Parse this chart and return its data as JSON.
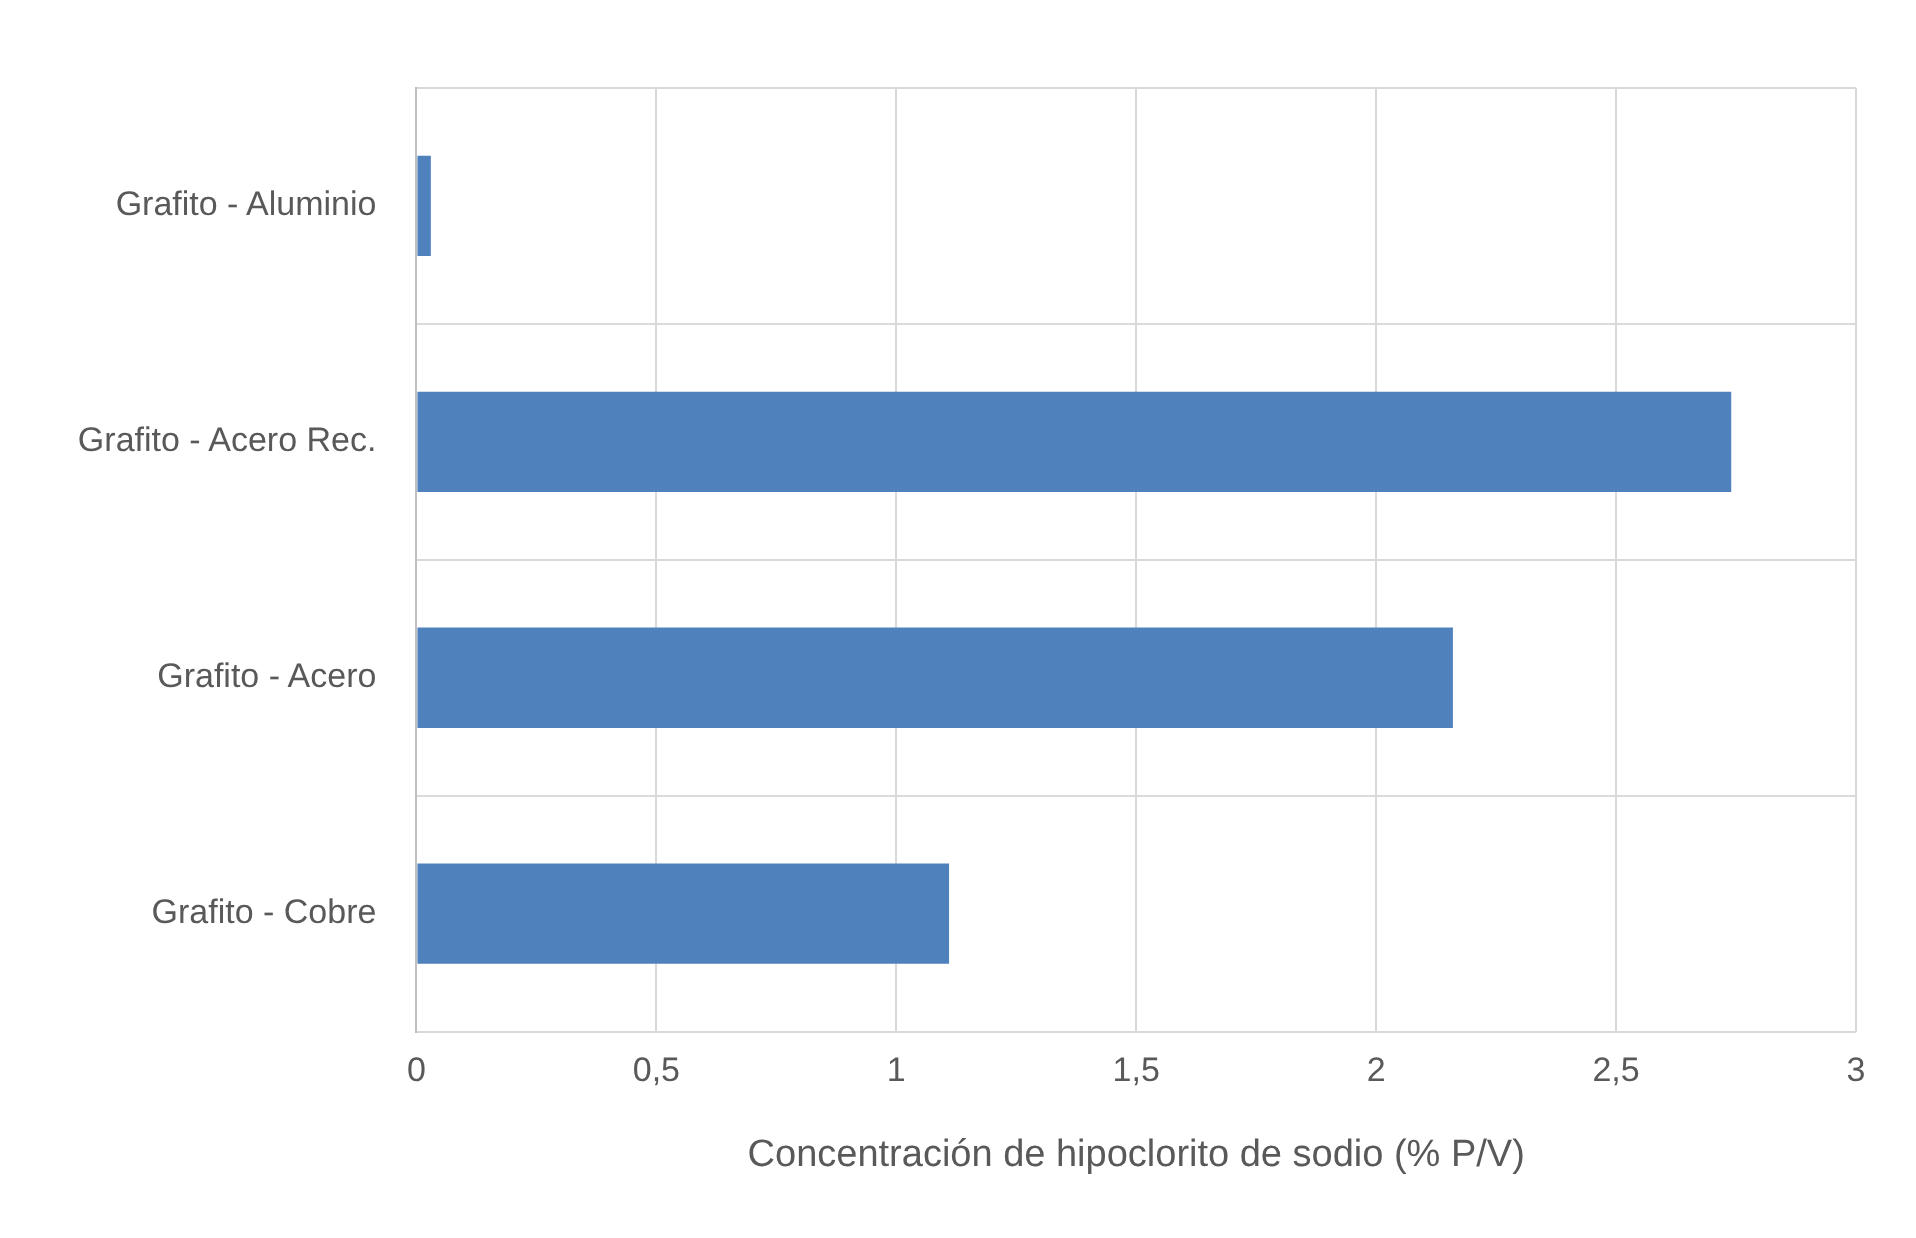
{
  "chart_data": {
    "type": "bar",
    "orientation": "horizontal",
    "xlabel": "Concentración de hipoclorito de sodio (% P/V)",
    "categories": [
      "Grafito - Aluminio",
      "Grafito - Acero Rec.",
      "Grafito - Acero",
      "Grafito - Cobre"
    ],
    "values": [
      0.03,
      2.74,
      2.16,
      1.11
    ],
    "color": "#4f81bd",
    "xlim": [
      0,
      3
    ],
    "xticks": [
      0,
      {
        "value": 0.5,
        "label": "0,5"
      },
      1,
      {
        "value": 1.5,
        "label": "1,5"
      },
      2,
      {
        "value": 2.5,
        "label": "2,5"
      },
      3
    ],
    "grid": true,
    "legend": false
  }
}
